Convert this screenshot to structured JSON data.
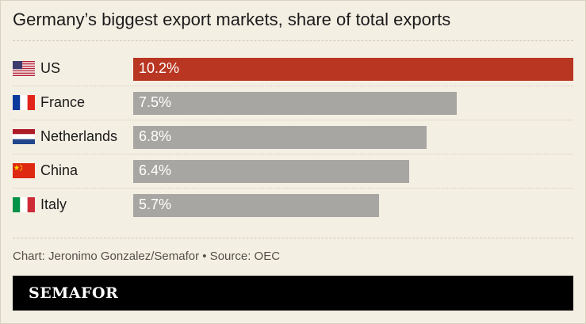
{
  "title": "Germany’s biggest export markets, share of total exports",
  "footer": "Chart: Jeronimo Gonzalez/Semafor • Source: OEC",
  "brand": "SEMAFOR",
  "colors": {
    "highlight": "#b93622",
    "default": "#a8a6a3",
    "background": "#f4efe3"
  },
  "chart_data": {
    "type": "bar",
    "orientation": "horizontal",
    "title": "Germany’s biggest export markets, share of total exports",
    "categories": [
      "US",
      "France",
      "Netherlands",
      "China",
      "Italy"
    ],
    "values": [
      10.2,
      7.5,
      6.8,
      6.4,
      5.7
    ],
    "labels": [
      "10.2%",
      "7.5%",
      "6.8%",
      "6.4%",
      "5.7%"
    ],
    "flags": [
      "us-flag-icon",
      "france-flag-icon",
      "netherlands-flag-icon",
      "china-flag-icon",
      "italy-flag-icon"
    ],
    "highlight": "US",
    "xlim": [
      0,
      10.2
    ]
  }
}
